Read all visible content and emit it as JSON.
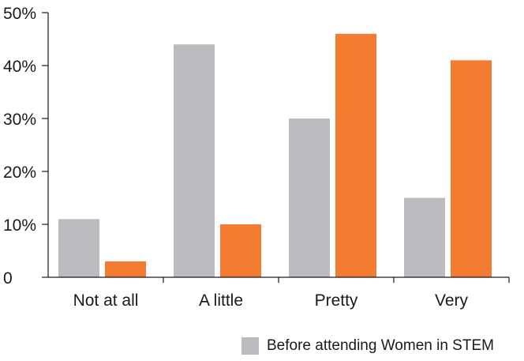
{
  "chart_data": {
    "type": "bar",
    "categories": [
      "Not at all",
      "A little",
      "Pretty",
      "Very"
    ],
    "series": [
      {
        "name": "Before attending Women in STEM",
        "color": "#bcbcc0",
        "values": [
          11,
          44,
          30,
          15
        ]
      },
      {
        "color": "#f47c32",
        "values": [
          3,
          10,
          46,
          41
        ]
      }
    ],
    "y_ticks": [
      "0",
      "10%",
      "20%",
      "30%",
      "40%",
      "50%"
    ],
    "ylim": [
      0,
      50
    ],
    "grid": false,
    "legend_position": "bottom-right"
  }
}
